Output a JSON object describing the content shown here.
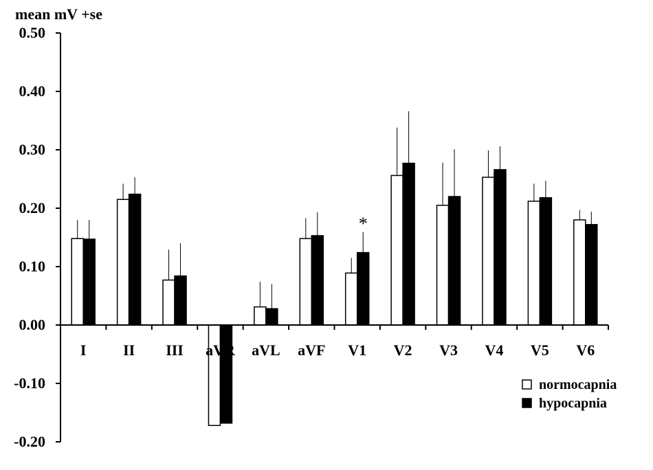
{
  "chart_data": {
    "type": "bar",
    "ylabel": "mean mV +se",
    "ylim": [
      -0.2,
      0.5
    ],
    "yticks": [
      0.5,
      0.4,
      0.3,
      0.2,
      0.1,
      0.0,
      -0.1,
      -0.2
    ],
    "ytick_labels": [
      "0.50",
      "0.40",
      "0.30",
      "0.20",
      "0.10",
      "0.00",
      "-0.10",
      "-0.20"
    ],
    "categories": [
      "I",
      "II",
      "III",
      "aVR",
      "aVL",
      "aVF",
      "V1",
      "V2",
      "V3",
      "V4",
      "V5",
      "V6"
    ],
    "series": [
      {
        "name": "normocapnia",
        "fill": "#ffffff",
        "values": [
          0.148,
          0.215,
          0.077,
          -0.172,
          0.031,
          0.148,
          0.089,
          0.256,
          0.205,
          0.253,
          0.212,
          0.18
        ],
        "errors": [
          0.032,
          0.027,
          0.052,
          0.0,
          0.043,
          0.035,
          0.026,
          0.082,
          0.073,
          0.046,
          0.03,
          0.017
        ]
      },
      {
        "name": "hypocapnia",
        "fill": "#000000",
        "values": [
          0.147,
          0.224,
          0.084,
          -0.168,
          0.028,
          0.153,
          0.124,
          0.277,
          0.22,
          0.266,
          0.218,
          0.172
        ],
        "errors": [
          0.033,
          0.029,
          0.056,
          0.0,
          0.042,
          0.04,
          0.035,
          0.089,
          0.081,
          0.04,
          0.029,
          0.022
        ]
      }
    ],
    "annotations": [
      {
        "text": "*",
        "category": "V1",
        "series": 1
      }
    ],
    "legend_position": "bottom-right",
    "grid": false
  }
}
